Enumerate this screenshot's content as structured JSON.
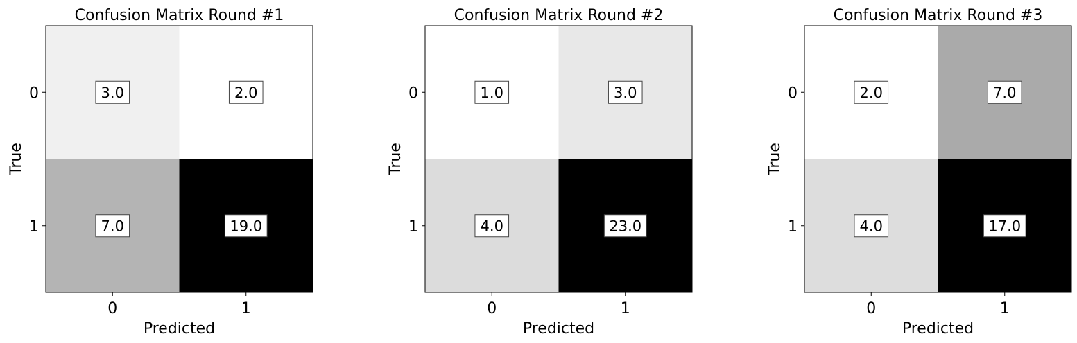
{
  "chart_data": [
    {
      "type": "heatmap",
      "title": "Confusion Matrix Round #1",
      "xlabel": "Predicted",
      "ylabel": "True",
      "x_categories": [
        "0",
        "1"
      ],
      "y_categories": [
        "0",
        "1"
      ],
      "values": [
        [
          3.0,
          2.0
        ],
        [
          7.0,
          19.0
        ]
      ],
      "value_labels": [
        [
          "3.0",
          "2.0"
        ],
        [
          "7.0",
          "19.0"
        ]
      ],
      "colormap": "grayscale (white=low, black=high)"
    },
    {
      "type": "heatmap",
      "title": "Confusion Matrix Round #2",
      "xlabel": "Predicted",
      "ylabel": "True",
      "x_categories": [
        "0",
        "1"
      ],
      "y_categories": [
        "0",
        "1"
      ],
      "values": [
        [
          1.0,
          3.0
        ],
        [
          4.0,
          23.0
        ]
      ],
      "value_labels": [
        [
          "1.0",
          "3.0"
        ],
        [
          "4.0",
          "23.0"
        ]
      ],
      "colormap": "grayscale (white=low, black=high)"
    },
    {
      "type": "heatmap",
      "title": "Confusion Matrix Round #3",
      "xlabel": "Predicted",
      "ylabel": "True",
      "x_categories": [
        "0",
        "1"
      ],
      "y_categories": [
        "0",
        "1"
      ],
      "values": [
        [
          2.0,
          7.0
        ],
        [
          4.0,
          17.0
        ]
      ],
      "value_labels": [
        [
          "2.0",
          "7.0"
        ],
        [
          "4.0",
          "17.0"
        ]
      ],
      "colormap": "grayscale (white=low, black=high)"
    }
  ]
}
